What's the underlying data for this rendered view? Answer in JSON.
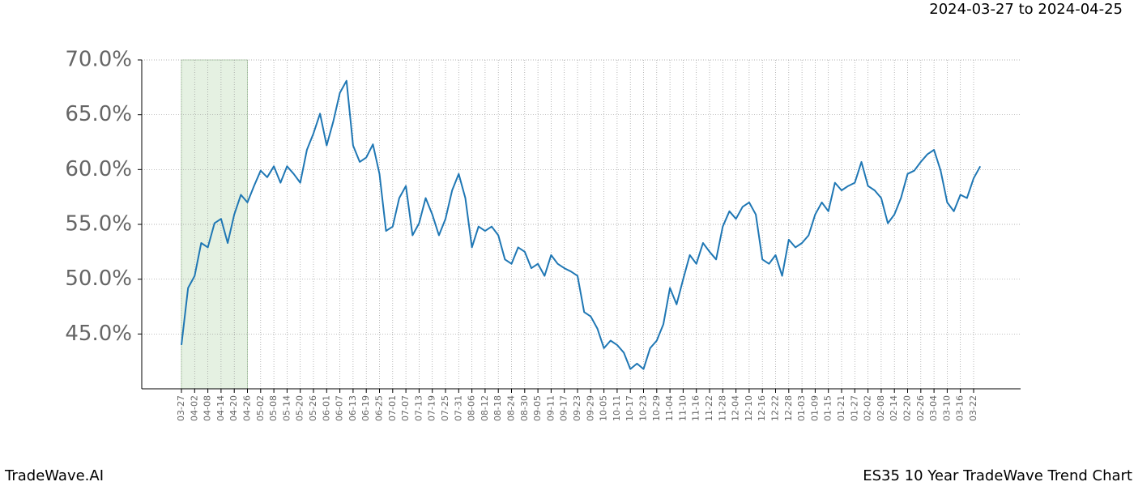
{
  "chart_data": {
    "type": "line",
    "title": "ES35 10 Year TradeWave Trend Chart",
    "subtitle": "2024-03-27 to 2024-04-25",
    "brand": "TradeWave.AI",
    "categories": [
      "03-27",
      null,
      "04-02",
      null,
      "04-08",
      null,
      "04-14",
      null,
      "04-20",
      null,
      "04-26",
      null,
      "05-02",
      null,
      "05-08",
      null,
      "05-14",
      null,
      "05-20",
      null,
      "05-26",
      null,
      "06-01",
      null,
      "06-07",
      null,
      "06-13",
      null,
      "06-19",
      null,
      "06-25",
      null,
      "07-01",
      null,
      "07-07",
      null,
      "07-13",
      null,
      "07-19",
      null,
      "07-25",
      null,
      "07-31",
      null,
      "08-06",
      null,
      "08-12",
      null,
      "08-18",
      null,
      "08-24",
      null,
      "08-30",
      null,
      "09-05",
      null,
      "09-11",
      null,
      "09-17",
      null,
      "09-23",
      null,
      "09-29",
      null,
      "10-05",
      null,
      "10-11",
      null,
      "10-17",
      null,
      "10-23",
      null,
      "10-29",
      null,
      "11-04",
      null,
      "11-10",
      null,
      "11-16",
      null,
      "11-22",
      null,
      "11-28",
      null,
      "12-04",
      null,
      "12-10",
      null,
      "12-16",
      null,
      "12-22",
      null,
      "12-28",
      null,
      "01-03",
      null,
      "01-09",
      null,
      "01-15",
      null,
      "01-21",
      null,
      "01-27",
      null,
      "02-02",
      null,
      "02-08",
      null,
      "02-14",
      null,
      "02-20",
      null,
      "02-26",
      null,
      "03-04",
      null,
      "03-10",
      null,
      "03-16",
      null,
      "03-22",
      null
    ],
    "values": [
      44.0,
      49.2,
      50.3,
      53.3,
      52.9,
      55.1,
      55.5,
      53.3,
      55.9,
      57.7,
      57.0,
      58.5,
      59.9,
      59.3,
      60.3,
      58.8,
      60.3,
      59.6,
      58.8,
      61.8,
      63.3,
      65.1,
      62.2,
      64.4,
      67.0,
      68.1,
      62.2,
      60.7,
      61.1,
      62.3,
      59.6,
      54.4,
      54.8,
      57.4,
      58.5,
      54.0,
      55.1,
      57.4,
      55.9,
      54.0,
      55.5,
      58.1,
      59.6,
      57.4,
      52.9,
      54.8,
      54.4,
      54.8,
      54.0,
      51.8,
      51.4,
      52.9,
      52.5,
      51.0,
      51.4,
      50.3,
      52.2,
      51.4,
      51.0,
      50.7,
      50.3,
      47.0,
      46.6,
      45.5,
      43.7,
      44.4,
      44.0,
      43.3,
      41.8,
      42.3,
      41.8,
      43.7,
      44.4,
      45.9,
      49.2,
      47.7,
      50.0,
      52.2,
      51.4,
      53.3,
      52.5,
      51.8,
      54.8,
      56.2,
      55.5,
      56.6,
      57.0,
      55.9,
      51.8,
      51.4,
      52.2,
      50.3,
      53.6,
      52.9,
      53.3,
      54.0,
      55.9,
      57.0,
      56.2,
      58.8,
      58.1,
      58.5,
      58.8,
      60.7,
      58.5,
      58.1,
      57.4,
      55.1,
      55.9,
      57.4,
      59.6,
      59.9,
      60.7,
      61.4,
      61.8,
      59.9,
      57.0,
      56.2,
      57.7,
      57.4,
      59.2,
      60.3
    ],
    "color": "#1f77b4",
    "highlight": [
      0,
      10
    ],
    "ylim": [
      40,
      70
    ],
    "yticks": [
      {
        "value": 45,
        "label": "45.0%"
      },
      {
        "value": 50,
        "label": "50.0%"
      },
      {
        "value": 55,
        "label": "55.0%"
      },
      {
        "value": 60,
        "label": "60.0%"
      },
      {
        "value": 65,
        "label": "65.0%"
      },
      {
        "value": 70,
        "label": "70.0%"
      }
    ],
    "grid": true
  }
}
